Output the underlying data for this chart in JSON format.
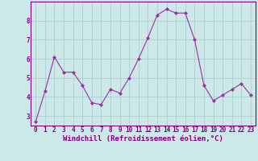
{
  "x": [
    0,
    1,
    2,
    3,
    4,
    5,
    6,
    7,
    8,
    9,
    10,
    11,
    12,
    13,
    14,
    15,
    16,
    17,
    18,
    19,
    20,
    21,
    22,
    23
  ],
  "y": [
    2.7,
    4.3,
    6.1,
    5.3,
    5.3,
    4.6,
    3.7,
    3.6,
    4.4,
    4.2,
    5.0,
    6.0,
    7.1,
    8.3,
    8.6,
    8.4,
    8.4,
    7.0,
    4.6,
    3.8,
    4.1,
    4.4,
    4.7,
    4.1
  ],
  "line_color": "#9b30a0",
  "marker": "D",
  "marker_size": 2,
  "bg_color": "#cce8e8",
  "grid_color": "#aad0d0",
  "xlabel": "Windchill (Refroidissement éolien,°C)",
  "xlabel_color": "#800080",
  "tick_color": "#800080",
  "ylim": [
    2.5,
    9.0
  ],
  "xlim": [
    -0.5,
    23.5
  ],
  "yticks": [
    3,
    4,
    5,
    6,
    7,
    8
  ],
  "xticks": [
    0,
    1,
    2,
    3,
    4,
    5,
    6,
    7,
    8,
    9,
    10,
    11,
    12,
    13,
    14,
    15,
    16,
    17,
    18,
    19,
    20,
    21,
    22,
    23
  ],
  "spine_color": "#800080",
  "tick_fontsize": 5.5,
  "xlabel_fontsize": 6.5
}
